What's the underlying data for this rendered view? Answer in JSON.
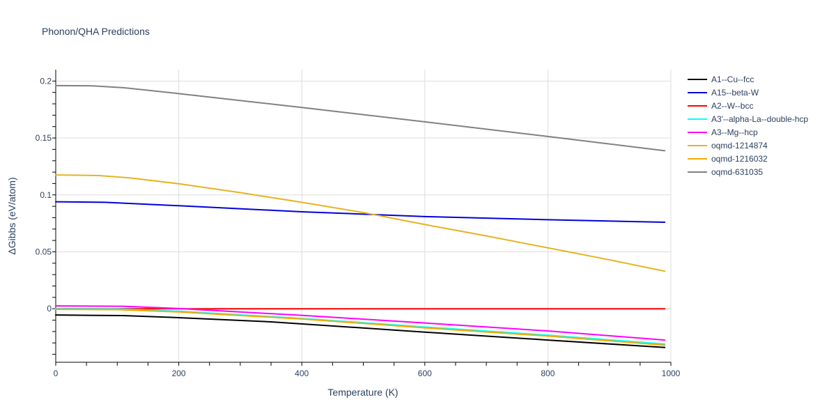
{
  "chart_data": {
    "type": "line",
    "title": "Phonon/QHA Predictions",
    "xlabel": "Temperature (K)",
    "ylabel": "ΔGibbs (eV/atom)",
    "xlim": [
      0,
      1000
    ],
    "ylim": [
      -0.047,
      0.21
    ],
    "x_ticks": [
      0,
      200,
      400,
      600,
      800,
      1000
    ],
    "y_ticks": [
      0,
      0.05,
      0.1,
      0.15,
      0.2
    ],
    "x_tick_labels": [
      "0",
      "200",
      "400",
      "600",
      "800",
      "1000"
    ],
    "y_tick_labels": [
      "0",
      "0.05",
      "0.1",
      "0.15",
      "0.2"
    ],
    "grid": true,
    "legend_position": "right",
    "series": [
      {
        "name": "A1--Cu--fcc",
        "color": "#000000",
        "x": [
          0,
          110,
          200,
          350,
          600,
          800,
          990
        ],
        "y": [
          -0.0055,
          -0.006,
          -0.0078,
          -0.0115,
          -0.0205,
          -0.0275,
          -0.034
        ]
      },
      {
        "name": "A15--beta-W",
        "color": "#0000dd",
        "x": [
          0,
          80,
          200,
          400,
          600,
          800,
          990
        ],
        "y": [
          0.094,
          0.0935,
          0.0905,
          0.0852,
          0.081,
          0.0782,
          0.076
        ]
      },
      {
        "name": "A2--W--bcc",
        "color": "#ff0000",
        "x": [
          0,
          990
        ],
        "y": [
          0,
          0
        ]
      },
      {
        "name": "A3'--alpha-La--double-hcp",
        "color": "#00ffff",
        "x": [
          0,
          100,
          200,
          400,
          600,
          800,
          990
        ],
        "y": [
          0,
          -0.0002,
          -0.0022,
          -0.0085,
          -0.016,
          -0.0232,
          -0.031
        ]
      },
      {
        "name": "A3--Mg--hcp",
        "color": "#ff00ff",
        "x": [
          0,
          110,
          200,
          400,
          600,
          800,
          990
        ],
        "y": [
          0.0025,
          0.0022,
          0.0002,
          -0.0058,
          -0.0125,
          -0.0195,
          -0.0275
        ]
      },
      {
        "name": "oqmd-1214874",
        "color": "#e6b321",
        "x": [
          0,
          70,
          120,
          200,
          300,
          400,
          500,
          600,
          700,
          800,
          900,
          990
        ],
        "y": [
          0.1175,
          0.117,
          0.115,
          0.1098,
          0.102,
          0.0935,
          0.0845,
          0.074,
          0.064,
          0.0535,
          0.043,
          0.033
        ]
      },
      {
        "name": "oqmd-1216032",
        "color": "#f5a900",
        "x": [
          0,
          100,
          200,
          400,
          600,
          800,
          990
        ],
        "y": [
          -0.0005,
          -0.0008,
          -0.0028,
          -0.009,
          -0.0168,
          -0.024,
          -0.032
        ]
      },
      {
        "name": "oqmd-631035",
        "color": "#808080",
        "x": [
          0,
          60,
          110,
          200,
          400,
          600,
          800,
          990
        ],
        "y": [
          0.196,
          0.1958,
          0.1942,
          0.189,
          0.1768,
          0.1642,
          0.1513,
          0.1388
        ]
      }
    ]
  }
}
